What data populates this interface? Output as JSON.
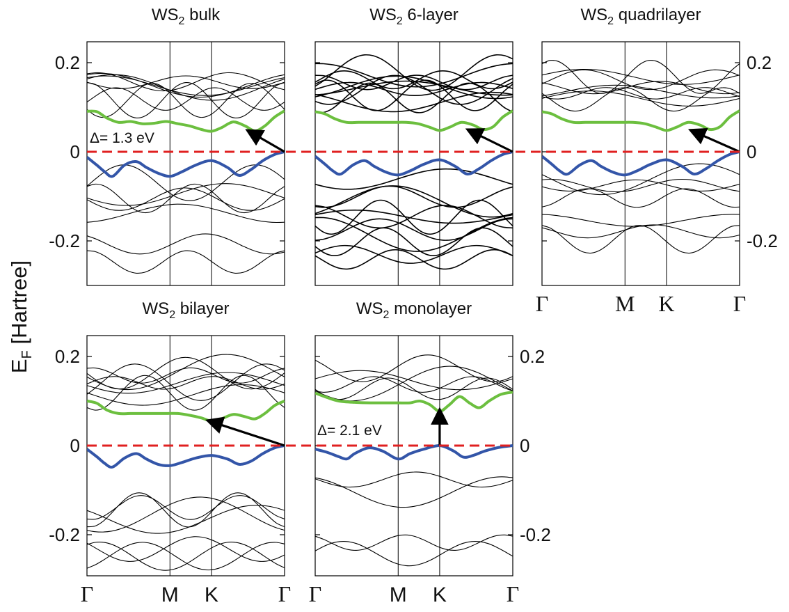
{
  "chart_data": {
    "type": "line",
    "ylabel": {
      "main": "E",
      "sub": "F",
      "rest": " [Hartree]"
    },
    "colors": {
      "valence": "#3355a8",
      "conduction": "#6cbf3f",
      "fermi": "#e02020",
      "bands": "#000000",
      "arrow": "#000000"
    },
    "y_ticks": [
      {
        "value": 0.2,
        "label": "0.2"
      },
      {
        "value": 0,
        "label": "0"
      },
      {
        "value": -0.2,
        "label": "-0.2"
      }
    ],
    "ylim": [
      -0.3,
      0.25
    ],
    "x_high_symmetry": [
      {
        "label": "Γ",
        "position": 0.0
      },
      {
        "label": "M",
        "position": 0.42
      },
      {
        "label": "K",
        "position": 0.63
      },
      {
        "label": "Γ",
        "position": 1.0
      }
    ],
    "fermi_level": 0,
    "panels": [
      {
        "title": {
          "main": "WS",
          "sub": "2",
          "rest": " bulk"
        },
        "gap_label": "Δ= 1.3 eV",
        "gap_value_eV": 1.3,
        "arrow": {
          "from": [
            1.0,
            0.0
          ],
          "to": [
            0.82,
            0.046
          ]
        },
        "valence_band": {
          "x": [
            0,
            0.05,
            0.09,
            0.13,
            0.19,
            0.25,
            0.3,
            0.36,
            0.42,
            0.48,
            0.55,
            0.63,
            0.71,
            0.77,
            0.83,
            0.89,
            0.95,
            1.0
          ],
          "y": [
            -0.012,
            -0.03,
            -0.045,
            -0.055,
            -0.03,
            -0.022,
            -0.035,
            -0.048,
            -0.055,
            -0.045,
            -0.03,
            -0.02,
            -0.035,
            -0.053,
            -0.04,
            -0.02,
            -0.006,
            0
          ]
        },
        "conduction_band": {
          "x": [
            0,
            0.05,
            0.1,
            0.16,
            0.22,
            0.28,
            0.34,
            0.4,
            0.46,
            0.52,
            0.58,
            0.63,
            0.68,
            0.74,
            0.8,
            0.85,
            0.9,
            0.95,
            1.0
          ],
          "y": [
            0.091,
            0.09,
            0.076,
            0.066,
            0.068,
            0.063,
            0.064,
            0.068,
            0.063,
            0.058,
            0.05,
            0.046,
            0.054,
            0.067,
            0.058,
            0.047,
            0.058,
            0.078,
            0.092
          ]
        }
      },
      {
        "title": {
          "main": "WS",
          "sub": "2",
          "rest": " 6-layer"
        },
        "gap_label": "",
        "arrow": {
          "from": [
            1.0,
            0.0
          ],
          "to": [
            0.78,
            0.048
          ]
        },
        "valence_band": {
          "x": [
            0,
            0.05,
            0.09,
            0.13,
            0.19,
            0.25,
            0.3,
            0.36,
            0.42,
            0.48,
            0.55,
            0.63,
            0.71,
            0.77,
            0.83,
            0.89,
            0.95,
            1.0
          ],
          "y": [
            -0.01,
            -0.028,
            -0.043,
            -0.05,
            -0.03,
            -0.02,
            -0.033,
            -0.046,
            -0.052,
            -0.043,
            -0.028,
            -0.018,
            -0.033,
            -0.05,
            -0.038,
            -0.02,
            -0.006,
            0
          ]
        },
        "conduction_band": {
          "x": [
            0,
            0.05,
            0.1,
            0.16,
            0.22,
            0.28,
            0.34,
            0.4,
            0.46,
            0.52,
            0.58,
            0.63,
            0.68,
            0.74,
            0.8,
            0.85,
            0.9,
            0.95,
            1.0
          ],
          "y": [
            0.09,
            0.085,
            0.074,
            0.066,
            0.066,
            0.066,
            0.066,
            0.066,
            0.066,
            0.063,
            0.055,
            0.048,
            0.055,
            0.066,
            0.06,
            0.05,
            0.056,
            0.078,
            0.092
          ]
        }
      },
      {
        "title": {
          "main": "WS",
          "sub": "2",
          "rest": " quadrilayer"
        },
        "gap_label": "",
        "arrow": {
          "from": [
            1.0,
            0.0
          ],
          "to": [
            0.76,
            0.047
          ]
        },
        "valence_band": {
          "x": [
            0,
            0.05,
            0.09,
            0.13,
            0.19,
            0.25,
            0.3,
            0.36,
            0.42,
            0.48,
            0.55,
            0.63,
            0.71,
            0.77,
            0.83,
            0.89,
            0.95,
            1.0
          ],
          "y": [
            -0.01,
            -0.028,
            -0.043,
            -0.05,
            -0.03,
            -0.02,
            -0.033,
            -0.046,
            -0.052,
            -0.043,
            -0.028,
            -0.018,
            -0.033,
            -0.05,
            -0.038,
            -0.02,
            -0.006,
            0
          ]
        },
        "conduction_band": {
          "x": [
            0,
            0.05,
            0.1,
            0.16,
            0.22,
            0.28,
            0.34,
            0.4,
            0.46,
            0.52,
            0.58,
            0.63,
            0.68,
            0.74,
            0.8,
            0.85,
            0.9,
            0.95,
            1.0
          ],
          "y": [
            0.09,
            0.085,
            0.074,
            0.066,
            0.066,
            0.066,
            0.066,
            0.066,
            0.066,
            0.063,
            0.055,
            0.048,
            0.055,
            0.066,
            0.06,
            0.05,
            0.056,
            0.078,
            0.092
          ]
        }
      },
      {
        "title": {
          "main": "WS",
          "sub": "2",
          "rest": " bilayer"
        },
        "gap_label": "",
        "arrow": {
          "from": [
            1.0,
            0.0
          ],
          "to": [
            0.62,
            0.055
          ]
        },
        "valence_band": {
          "x": [
            0,
            0.05,
            0.09,
            0.13,
            0.19,
            0.25,
            0.3,
            0.36,
            0.42,
            0.48,
            0.55,
            0.63,
            0.71,
            0.77,
            0.83,
            0.89,
            0.95,
            1.0
          ],
          "y": [
            -0.008,
            -0.025,
            -0.04,
            -0.048,
            -0.028,
            -0.018,
            -0.03,
            -0.042,
            -0.045,
            -0.038,
            -0.028,
            -0.022,
            -0.03,
            -0.042,
            -0.035,
            -0.018,
            -0.005,
            0
          ]
        },
        "conduction_band": {
          "x": [
            0,
            0.05,
            0.1,
            0.16,
            0.22,
            0.28,
            0.34,
            0.4,
            0.46,
            0.52,
            0.58,
            0.63,
            0.68,
            0.74,
            0.8,
            0.85,
            0.9,
            0.95,
            1.0
          ],
          "y": [
            0.1,
            0.095,
            0.08,
            0.072,
            0.072,
            0.072,
            0.072,
            0.072,
            0.072,
            0.068,
            0.062,
            0.055,
            0.06,
            0.07,
            0.065,
            0.06,
            0.072,
            0.09,
            0.1
          ]
        }
      },
      {
        "title": {
          "main": "WS",
          "sub": "2",
          "rest": " monolayer"
        },
        "gap_label": "Δ= 2.1 eV",
        "gap_value_eV": 2.1,
        "arrow": {
          "from": [
            0.63,
            0.0
          ],
          "to": [
            0.63,
            0.077
          ]
        },
        "valence_band": {
          "x": [
            0,
            0.06,
            0.12,
            0.16,
            0.2,
            0.27,
            0.34,
            0.42,
            0.48,
            0.55,
            0.63,
            0.7,
            0.75,
            0.8,
            0.86,
            0.93,
            1.0
          ],
          "y": [
            -0.008,
            -0.015,
            -0.025,
            -0.03,
            -0.018,
            -0.005,
            -0.012,
            -0.03,
            -0.018,
            -0.008,
            0,
            -0.012,
            -0.026,
            -0.022,
            -0.012,
            -0.004,
            0
          ]
        },
        "conduction_band": {
          "x": [
            0,
            0.06,
            0.12,
            0.2,
            0.28,
            0.36,
            0.42,
            0.48,
            0.53,
            0.58,
            0.63,
            0.68,
            0.73,
            0.78,
            0.83,
            0.88,
            0.94,
            1.0
          ],
          "y": [
            0.118,
            0.108,
            0.1,
            0.097,
            0.096,
            0.096,
            0.096,
            0.096,
            0.1,
            0.092,
            0.077,
            0.092,
            0.11,
            0.096,
            0.085,
            0.1,
            0.115,
            0.12
          ]
        }
      }
    ]
  }
}
